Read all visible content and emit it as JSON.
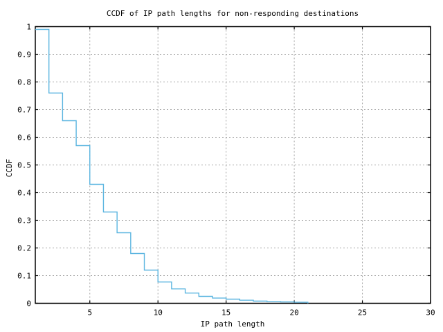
{
  "title": "CCDF of IP path lengths for non-responding destinations",
  "axes": {
    "x": {
      "label": "IP path length",
      "min": 1,
      "max": 30,
      "ticks": [
        5,
        10,
        15,
        20,
        25,
        30
      ],
      "tick_labels": [
        "5",
        "10",
        "15",
        "20",
        "25",
        "30"
      ]
    },
    "y": {
      "label": "CCDF",
      "min": 0,
      "max": 1,
      "ticks": [
        0,
        0.1,
        0.2,
        0.3,
        0.4,
        0.5,
        0.6,
        0.7,
        0.8,
        0.9,
        1
      ],
      "tick_labels": [
        "0",
        "0.1",
        "0.2",
        "0.3",
        "0.4",
        "0.5",
        "0.6",
        "0.7",
        "0.8",
        "0.9",
        "1"
      ]
    }
  },
  "colors": {
    "line": "#5bb5e0",
    "grid": "#a0a0a0",
    "border": "#000000",
    "text": "#000000",
    "background": "#ffffff"
  },
  "chart_data": {
    "type": "line",
    "line_style": "step-post",
    "title": "CCDF of IP path lengths for non-responding destinations",
    "xlabel": "IP path length",
    "ylabel": "CCDF",
    "xlim": [
      1,
      30
    ],
    "ylim": [
      0,
      1
    ],
    "grid": true,
    "legend": false,
    "x": [
      1,
      2,
      3,
      4,
      5,
      6,
      7,
      8,
      9,
      10,
      11,
      12,
      13,
      14,
      15,
      16,
      17,
      18,
      19,
      20,
      21
    ],
    "y": [
      0.99,
      0.76,
      0.66,
      0.57,
      0.43,
      0.33,
      0.255,
      0.18,
      0.12,
      0.077,
      0.052,
      0.037,
      0.025,
      0.019,
      0.015,
      0.011,
      0.008,
      0.006,
      0.005,
      0.004,
      0
    ]
  }
}
